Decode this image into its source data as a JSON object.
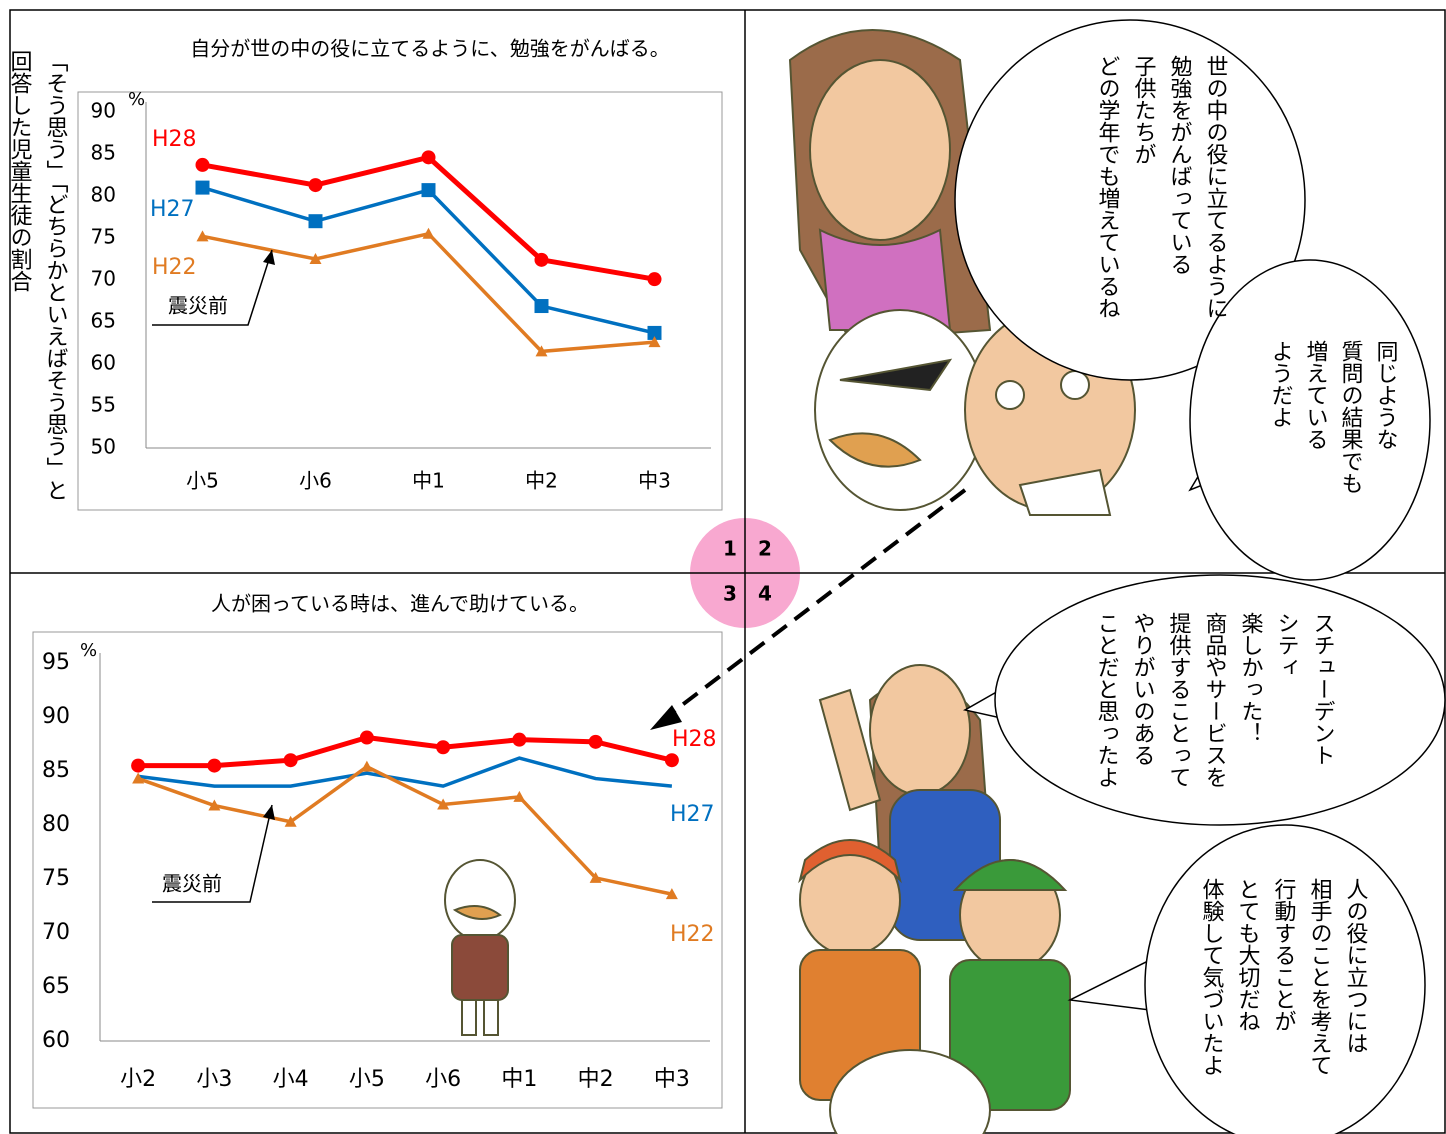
{
  "chart_data": [
    {
      "type": "line",
      "title": "自分が世の中の役に立てるように、勉強をがんばる。",
      "ylabel": [
        "「そう思う」「どちらかといえばそう思う」と",
        "回答した児童生徒の割合"
      ],
      "y_unit": "%",
      "categories": [
        "小5",
        "小6",
        "中1",
        "中2",
        "中3"
      ],
      "ylim": [
        50,
        90
      ],
      "yticks": [
        50,
        55,
        60,
        65,
        70,
        75,
        80,
        85,
        90
      ],
      "annotation": "震災前",
      "series": [
        {
          "name": "H28",
          "color": "#ff0000",
          "marker": "circle",
          "values": [
            83.7,
            81.3,
            84.6,
            72.4,
            70.1
          ]
        },
        {
          "name": "H27",
          "color": "#0070c0",
          "marker": "square",
          "values": [
            81.0,
            77.0,
            80.7,
            66.9,
            63.7
          ]
        },
        {
          "name": "H22",
          "color": "#e07b22",
          "marker": "triangle",
          "values": [
            75.2,
            72.5,
            75.5,
            61.5,
            62.6
          ]
        }
      ]
    },
    {
      "type": "line",
      "title": "人が困っている時は、進んで助けている。",
      "y_unit": "%",
      "categories": [
        "小2",
        "小3",
        "小4",
        "小5",
        "小6",
        "中1",
        "中2",
        "中3"
      ],
      "ylim": [
        60,
        95
      ],
      "yticks": [
        60,
        65,
        70,
        75,
        80,
        85,
        90,
        95
      ],
      "annotation": "震災前",
      "series": [
        {
          "name": "H28",
          "color": "#ff0000",
          "marker": "circle",
          "values": [
            85.5,
            85.5,
            86.0,
            88.1,
            87.2,
            87.9,
            87.7,
            86.0
          ]
        },
        {
          "name": "H27",
          "color": "#0070c0",
          "marker": "none",
          "values": [
            84.5,
            83.6,
            83.6,
            84.8,
            83.6,
            86.2,
            84.3,
            83.6
          ]
        },
        {
          "name": "H22",
          "color": "#e07b22",
          "marker": "triangle",
          "values": [
            84.3,
            81.8,
            80.3,
            85.4,
            81.9,
            82.6,
            75.1,
            73.6
          ]
        }
      ]
    }
  ],
  "panel_numbers": [
    "1",
    "2",
    "3",
    "4"
  ],
  "panel2_bubbles": [
    [
      "世の中の役に立てるように",
      "勉強をがんばっている",
      "子供たちが",
      "どの学年でも増えているね"
    ],
    [
      "同じような",
      "質問の結果でも",
      "増えている",
      "ようだよ"
    ]
  ],
  "panel4_bubbles": [
    [
      "スチューデント",
      "シティ",
      "楽しかった！",
      "商品やサービスを",
      "提供することって",
      "やりがいのある",
      "ことだと思ったよ"
    ],
    [
      "人の役に立つには",
      "相手のことを考えて",
      "行動することが",
      "とても大切だね",
      "体験して気づいたよ"
    ]
  ]
}
